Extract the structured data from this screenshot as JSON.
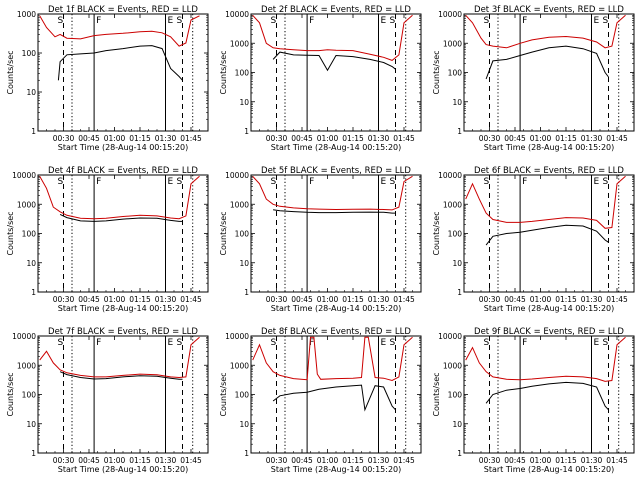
{
  "chart_data": [
    {
      "type": "line",
      "title": "Det 1f BLACK = Events, RED = LLD",
      "xlabel": "Start Time (28-Aug-14 00:15:20)",
      "ylabel": "Counts/sec",
      "ylim": [
        1,
        1000
      ],
      "log_y": true,
      "xlim": [
        "00:15",
        "01:55"
      ],
      "x_tick_labels": [
        "00:30",
        "00:45",
        "01:00",
        "01:15",
        "01:30",
        "01:45"
      ],
      "y_tick_labels": [
        "1",
        "10",
        "100",
        "1000"
      ],
      "time_marks": {
        "dashed": [
          "00:30",
          "01:40"
        ],
        "dotted": [
          "00:35",
          "01:46"
        ],
        "solid": [
          "00:48",
          "01:30"
        ]
      },
      "letters": [
        "S",
        "F",
        "E",
        "S"
      ],
      "series": [
        {
          "color": "#cc0000",
          "x": [
            "00:16",
            "00:20",
            "00:25",
            "00:28",
            "00:32",
            "00:40",
            "00:48",
            "00:55",
            "01:05",
            "01:15",
            "01:22",
            "01:28",
            "01:33",
            "01:38",
            "01:42",
            "01:45",
            "01:50"
          ],
          "y": [
            900,
            450,
            260,
            300,
            240,
            230,
            280,
            300,
            320,
            350,
            360,
            330,
            260,
            150,
            180,
            700,
            900
          ]
        },
        {
          "color": "#000000",
          "x": [
            "00:27",
            "00:28",
            "00:32",
            "00:40",
            "00:48",
            "00:55",
            "01:05",
            "01:15",
            "01:22",
            "01:28",
            "01:33",
            "01:38",
            "01:40"
          ],
          "y": [
            20,
            60,
            90,
            95,
            100,
            115,
            130,
            150,
            155,
            130,
            40,
            25,
            20
          ]
        }
      ]
    },
    {
      "type": "line",
      "title": "Det 2f BLACK = Events, RED = LLD",
      "xlabel": "Start Time (28-Aug-14 00:15:20)",
      "ylabel": "Counts/sec",
      "ylim": [
        1,
        10000
      ],
      "log_y": true,
      "xlim": [
        "00:15",
        "01:55"
      ],
      "x_tick_labels": [
        "00:30",
        "00:45",
        "01:00",
        "01:15",
        "01:30",
        "01:45"
      ],
      "y_tick_labels": [
        "1",
        "10",
        "100",
        "1000",
        "10000"
      ],
      "time_marks": {
        "dashed": [
          "00:30",
          "01:40"
        ],
        "dotted": [
          "00:35",
          "01:46"
        ],
        "solid": [
          "00:48",
          "01:30"
        ]
      },
      "letters": [
        "S",
        "F",
        "E",
        "S"
      ],
      "series": [
        {
          "color": "#cc0000",
          "x": [
            "00:16",
            "00:20",
            "00:24",
            "00:28",
            "00:32",
            "00:40",
            "00:48",
            "00:55",
            "01:00",
            "01:05",
            "01:15",
            "01:25",
            "01:33",
            "01:38",
            "01:42",
            "01:45",
            "01:50"
          ],
          "y": [
            9000,
            5000,
            1000,
            700,
            650,
            600,
            560,
            560,
            600,
            580,
            560,
            420,
            330,
            260,
            400,
            5000,
            9000
          ]
        },
        {
          "color": "#000000",
          "x": [
            "00:28",
            "00:32",
            "00:40",
            "00:48",
            "00:55",
            "01:00",
            "01:05",
            "01:15",
            "01:25",
            "01:33",
            "01:38",
            "01:40"
          ],
          "y": [
            280,
            500,
            400,
            390,
            380,
            120,
            380,
            350,
            280,
            220,
            160,
            130
          ]
        }
      ]
    },
    {
      "type": "line",
      "title": "Det 3f BLACK = Events, RED = LLD",
      "xlabel": "Start Time (28-Aug-14 00:15:20)",
      "ylabel": "Counts/sec",
      "ylim": [
        1,
        10000
      ],
      "log_y": true,
      "xlim": [
        "00:15",
        "01:55"
      ],
      "x_tick_labels": [
        "00:30",
        "00:45",
        "01:00",
        "01:15",
        "01:30",
        "01:45"
      ],
      "y_tick_labels": [
        "1",
        "10",
        "100",
        "1000",
        "10000"
      ],
      "time_marks": {
        "dashed": [
          "00:30",
          "01:40"
        ],
        "dotted": [
          "00:35",
          "01:46"
        ],
        "solid": [
          "00:48",
          "01:30"
        ]
      },
      "letters": [
        "S",
        "F",
        "E",
        "S"
      ],
      "series": [
        {
          "color": "#cc0000",
          "x": [
            "00:16",
            "00:20",
            "00:25",
            "00:28",
            "00:32",
            "00:40",
            "00:48",
            "00:55",
            "01:05",
            "01:15",
            "01:25",
            "01:33",
            "01:38",
            "01:42",
            "01:45",
            "01:50"
          ],
          "y": [
            9000,
            5000,
            1500,
            900,
            800,
            700,
            1000,
            1300,
            1600,
            1700,
            1500,
            1100,
            700,
            800,
            5000,
            9000
          ]
        },
        {
          "color": "#000000",
          "x": [
            "00:28",
            "00:32",
            "00:40",
            "00:48",
            "00:55",
            "01:05",
            "01:15",
            "01:25",
            "01:33",
            "01:38",
            "01:40"
          ],
          "y": [
            60,
            250,
            280,
            380,
            500,
            700,
            800,
            650,
            450,
            100,
            70
          ]
        }
      ]
    },
    {
      "type": "line",
      "title": "Det 4f BLACK = Events, RED = LLD",
      "xlabel": "Start Time (28-Aug-14 00:15:20)",
      "ylabel": "Counts/sec",
      "ylim": [
        1,
        10000
      ],
      "log_y": true,
      "xlim": [
        "00:15",
        "01:55"
      ],
      "x_tick_labels": [
        "00:30",
        "00:45",
        "01:00",
        "01:15",
        "01:30",
        "01:45"
      ],
      "y_tick_labels": [
        "1",
        "10",
        "100",
        "1000",
        "10000"
      ],
      "time_marks": {
        "dashed": [
          "00:30",
          "01:40"
        ],
        "dotted": [
          "00:35",
          "01:46"
        ],
        "solid": [
          "00:48",
          "01:30"
        ]
      },
      "letters": [
        "S",
        "F",
        "E",
        "S"
      ],
      "series": [
        {
          "color": "#cc0000",
          "x": [
            "00:16",
            "00:20",
            "00:24",
            "00:28",
            "00:32",
            "00:40",
            "00:48",
            "00:55",
            "01:05",
            "01:15",
            "01:25",
            "01:33",
            "01:38",
            "01:42",
            "01:45",
            "01:50"
          ],
          "y": [
            9000,
            3500,
            800,
            550,
            420,
            330,
            320,
            330,
            380,
            420,
            400,
            340,
            320,
            400,
            5000,
            9000
          ]
        },
        {
          "color": "#000000",
          "x": [
            "00:28",
            "00:32",
            "00:40",
            "00:48",
            "00:55",
            "01:05",
            "01:15",
            "01:25",
            "01:33",
            "01:38",
            "01:40"
          ],
          "y": [
            450,
            350,
            270,
            260,
            270,
            310,
            340,
            330,
            280,
            260,
            260
          ]
        }
      ]
    },
    {
      "type": "line",
      "title": "Det 5f BLACK = Events, RED = LLD",
      "xlabel": "Start Time (28-Aug-14 00:15:20)",
      "ylabel": "Counts/sec",
      "ylim": [
        1,
        10000
      ],
      "log_y": true,
      "xlim": [
        "00:15",
        "01:55"
      ],
      "x_tick_labels": [
        "00:30",
        "00:45",
        "01:00",
        "01:15",
        "01:30",
        "01:45"
      ],
      "y_tick_labels": [
        "1",
        "10",
        "100",
        "1000",
        "10000"
      ],
      "time_marks": {
        "dashed": [
          "00:30",
          "01:40"
        ],
        "dotted": [
          "00:35",
          "01:46"
        ],
        "solid": [
          "00:48",
          "01:30"
        ]
      },
      "letters": [
        "S",
        "F",
        "E",
        "S"
      ],
      "series": [
        {
          "color": "#cc0000",
          "x": [
            "00:16",
            "00:20",
            "00:24",
            "00:28",
            "00:32",
            "00:40",
            "00:48",
            "00:55",
            "01:05",
            "01:15",
            "01:25",
            "01:33",
            "01:38",
            "01:42",
            "01:45",
            "01:50"
          ],
          "y": [
            9000,
            5000,
            1500,
            1000,
            850,
            750,
            700,
            680,
            660,
            670,
            680,
            660,
            640,
            800,
            6000,
            9000
          ]
        },
        {
          "color": "#000000",
          "x": [
            "00:28",
            "00:32",
            "00:40",
            "00:48",
            "00:55",
            "01:05",
            "01:15",
            "01:25",
            "01:33",
            "01:38",
            "01:40"
          ],
          "y": [
            650,
            600,
            560,
            530,
            520,
            520,
            530,
            540,
            530,
            500,
            500
          ]
        }
      ]
    },
    {
      "type": "line",
      "title": "Det 6f BLACK = Events, RED = LLD",
      "xlabel": "Start Time (28-Aug-14 00:15:20)",
      "ylabel": "Counts/sec",
      "ylim": [
        1,
        10000
      ],
      "log_y": true,
      "xlim": [
        "00:15",
        "01:55"
      ],
      "x_tick_labels": [
        "00:30",
        "00:45",
        "01:00",
        "01:15",
        "01:30",
        "01:45"
      ],
      "y_tick_labels": [
        "1",
        "10",
        "100",
        "1000",
        "10000"
      ],
      "time_marks": {
        "dashed": [
          "00:30",
          "01:40"
        ],
        "dotted": [
          "00:35",
          "01:46"
        ],
        "solid": [
          "00:48",
          "01:30"
        ]
      },
      "letters": [
        "S",
        "F",
        "E",
        "S"
      ],
      "series": [
        {
          "color": "#cc0000",
          "x": [
            "00:16",
            "00:20",
            "00:24",
            "00:28",
            "00:32",
            "00:40",
            "00:48",
            "00:55",
            "01:05",
            "01:15",
            "01:25",
            "01:33",
            "01:38",
            "01:42",
            "01:45",
            "01:50"
          ],
          "y": [
            1500,
            5000,
            1500,
            500,
            300,
            240,
            240,
            260,
            300,
            350,
            340,
            280,
            150,
            160,
            5000,
            9000
          ]
        },
        {
          "color": "#000000",
          "x": [
            "00:28",
            "00:32",
            "00:40",
            "00:48",
            "00:55",
            "01:05",
            "01:15",
            "01:25",
            "01:33",
            "01:38",
            "01:40"
          ],
          "y": [
            40,
            80,
            100,
            110,
            130,
            160,
            190,
            180,
            120,
            60,
            50
          ]
        }
      ]
    },
    {
      "type": "line",
      "title": "Det 7f BLACK = Events, RED = LLD",
      "xlabel": "Start Time (28-Aug-14 00:15:20)",
      "ylabel": "Counts/sec",
      "ylim": [
        1,
        10000
      ],
      "log_y": true,
      "xlim": [
        "00:15",
        "01:55"
      ],
      "x_tick_labels": [
        "00:30",
        "00:45",
        "01:00",
        "01:15",
        "01:30",
        "01:45"
      ],
      "y_tick_labels": [
        "1",
        "10",
        "100",
        "1000",
        "10000"
      ],
      "time_marks": {
        "dashed": [
          "00:30",
          "01:40"
        ],
        "dotted": [
          "00:35",
          "01:46"
        ],
        "solid": [
          "00:48",
          "01:30"
        ]
      },
      "letters": [
        "S",
        "F",
        "E",
        "S"
      ],
      "series": [
        {
          "color": "#cc0000",
          "x": [
            "00:16",
            "00:20",
            "00:24",
            "00:28",
            "00:32",
            "00:40",
            "00:48",
            "00:55",
            "01:05",
            "01:15",
            "01:25",
            "01:33",
            "01:38",
            "01:42",
            "01:45",
            "01:50"
          ],
          "y": [
            1500,
            3000,
            1200,
            700,
            550,
            450,
            400,
            400,
            450,
            500,
            470,
            400,
            380,
            400,
            5000,
            9000
          ]
        },
        {
          "color": "#000000",
          "x": [
            "00:28",
            "00:32",
            "00:40",
            "00:48",
            "00:55",
            "01:05",
            "01:15",
            "01:25",
            "01:33",
            "01:38",
            "01:40"
          ],
          "y": [
            600,
            480,
            380,
            340,
            350,
            400,
            440,
            420,
            360,
            330,
            330
          ]
        }
      ]
    },
    {
      "type": "line",
      "title": "Det 8f BLACK = Events, RED = LLD",
      "xlabel": "Start Time (28-Aug-14 00:15:20)",
      "ylabel": "Counts/sec",
      "ylim": [
        1,
        10000
      ],
      "log_y": true,
      "xlim": [
        "00:15",
        "01:55"
      ],
      "x_tick_labels": [
        "00:30",
        "00:45",
        "01:00",
        "01:15",
        "01:30",
        "01:45"
      ],
      "y_tick_labels": [
        "1",
        "10",
        "100",
        "1000",
        "10000"
      ],
      "time_marks": {
        "dashed": [
          "00:30",
          "01:40"
        ],
        "dotted": [
          "00:35",
          "01:46"
        ],
        "solid": [
          "00:48",
          "01:30"
        ]
      },
      "letters": [
        "S",
        "F",
        "E",
        "S"
      ],
      "series": [
        {
          "color": "#cc0000",
          "x": [
            "00:16",
            "00:20",
            "00:24",
            "00:28",
            "00:32",
            "00:40",
            "00:48",
            "00:50",
            "00:52",
            "00:54",
            "00:56",
            "01:05",
            "01:15",
            "01:20",
            "01:22",
            "01:24",
            "01:28",
            "01:33",
            "01:38",
            "01:42",
            "01:45",
            "01:50"
          ],
          "y": [
            1500,
            5000,
            1200,
            600,
            450,
            350,
            320,
            9000,
            9000,
            500,
            330,
            350,
            360,
            380,
            9000,
            9000,
            380,
            360,
            300,
            400,
            5000,
            9000
          ]
        },
        {
          "color": "#000000",
          "x": [
            "00:28",
            "00:32",
            "00:40",
            "00:48",
            "00:55",
            "01:05",
            "01:15",
            "01:20",
            "01:22",
            "01:28",
            "01:33",
            "01:38",
            "01:40"
          ],
          "y": [
            60,
            90,
            110,
            120,
            150,
            180,
            200,
            210,
            30,
            200,
            180,
            40,
            30
          ]
        }
      ]
    },
    {
      "type": "line",
      "title": "Det 9f BLACK = Events, RED = LLD",
      "xlabel": "Start Time (28-Aug-14 00:15:20)",
      "ylabel": "Counts/sec",
      "ylim": [
        1,
        10000
      ],
      "log_y": true,
      "xlim": [
        "00:15",
        "01:55"
      ],
      "x_tick_labels": [
        "00:30",
        "00:45",
        "01:00",
        "01:15",
        "01:30",
        "01:45"
      ],
      "y_tick_labels": [
        "1",
        "10",
        "100",
        "1000",
        "10000"
      ],
      "time_marks": {
        "dashed": [
          "00:30",
          "01:40"
        ],
        "dotted": [
          "00:35",
          "01:46"
        ],
        "solid": [
          "00:48",
          "01:30"
        ]
      },
      "letters": [
        "S",
        "F",
        "E",
        "S"
      ],
      "series": [
        {
          "color": "#cc0000",
          "x": [
            "00:16",
            "00:20",
            "00:24",
            "00:28",
            "00:32",
            "00:40",
            "00:48",
            "00:55",
            "01:05",
            "01:15",
            "01:25",
            "01:33",
            "01:38",
            "01:42",
            "01:45",
            "01:50"
          ],
          "y": [
            1500,
            4000,
            1200,
            600,
            400,
            330,
            320,
            340,
            380,
            420,
            400,
            350,
            280,
            300,
            5000,
            9000
          ]
        },
        {
          "color": "#000000",
          "x": [
            "00:28",
            "00:32",
            "00:40",
            "00:48",
            "00:55",
            "01:05",
            "01:15",
            "01:25",
            "01:33",
            "01:38",
            "01:40"
          ],
          "y": [
            50,
            100,
            140,
            160,
            190,
            230,
            260,
            240,
            180,
            40,
            30
          ]
        }
      ]
    }
  ]
}
